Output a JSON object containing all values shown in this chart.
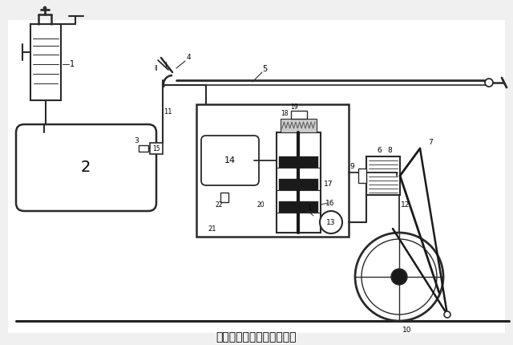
{
  "title": "直通自动空气制动机原理图",
  "bg_color": "#f5f5f5",
  "line_color": "#2a2a2a",
  "title_fontsize": 10,
  "fig_width": 6.4,
  "fig_height": 4.3
}
